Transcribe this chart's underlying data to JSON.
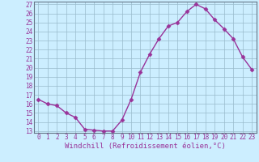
{
  "x": [
    0,
    1,
    2,
    3,
    4,
    5,
    6,
    7,
    8,
    9,
    10,
    11,
    12,
    13,
    14,
    15,
    16,
    17,
    18,
    19,
    20,
    21,
    22,
    23
  ],
  "y": [
    16.5,
    16.0,
    15.8,
    15.0,
    14.5,
    13.2,
    13.1,
    13.0,
    13.0,
    14.2,
    16.5,
    19.5,
    21.5,
    23.2,
    24.6,
    25.0,
    26.2,
    27.0,
    26.5,
    25.3,
    24.3,
    23.2,
    21.2,
    19.8
  ],
  "line_color": "#993399",
  "marker": "D",
  "markersize": 2.5,
  "linewidth": 1.0,
  "bg_color": "#cceeff",
  "plot_bg_color": "#cceeff",
  "grid_color": "#99bbcc",
  "tick_color": "#993399",
  "label_color": "#993399",
  "xlabel": "Windchill (Refroidissement éolien,°C)",
  "xlabel_fontsize": 6.5,
  "tick_fontsize": 5.5,
  "ylim": [
    13,
    27
  ],
  "xlim": [
    -0.5,
    23.5
  ],
  "yticks": [
    13,
    14,
    15,
    16,
    17,
    18,
    19,
    20,
    21,
    22,
    23,
    24,
    25,
    26,
    27
  ],
  "xticks": [
    0,
    1,
    2,
    3,
    4,
    5,
    6,
    7,
    8,
    9,
    10,
    11,
    12,
    13,
    14,
    15,
    16,
    17,
    18,
    19,
    20,
    21,
    22,
    23
  ]
}
